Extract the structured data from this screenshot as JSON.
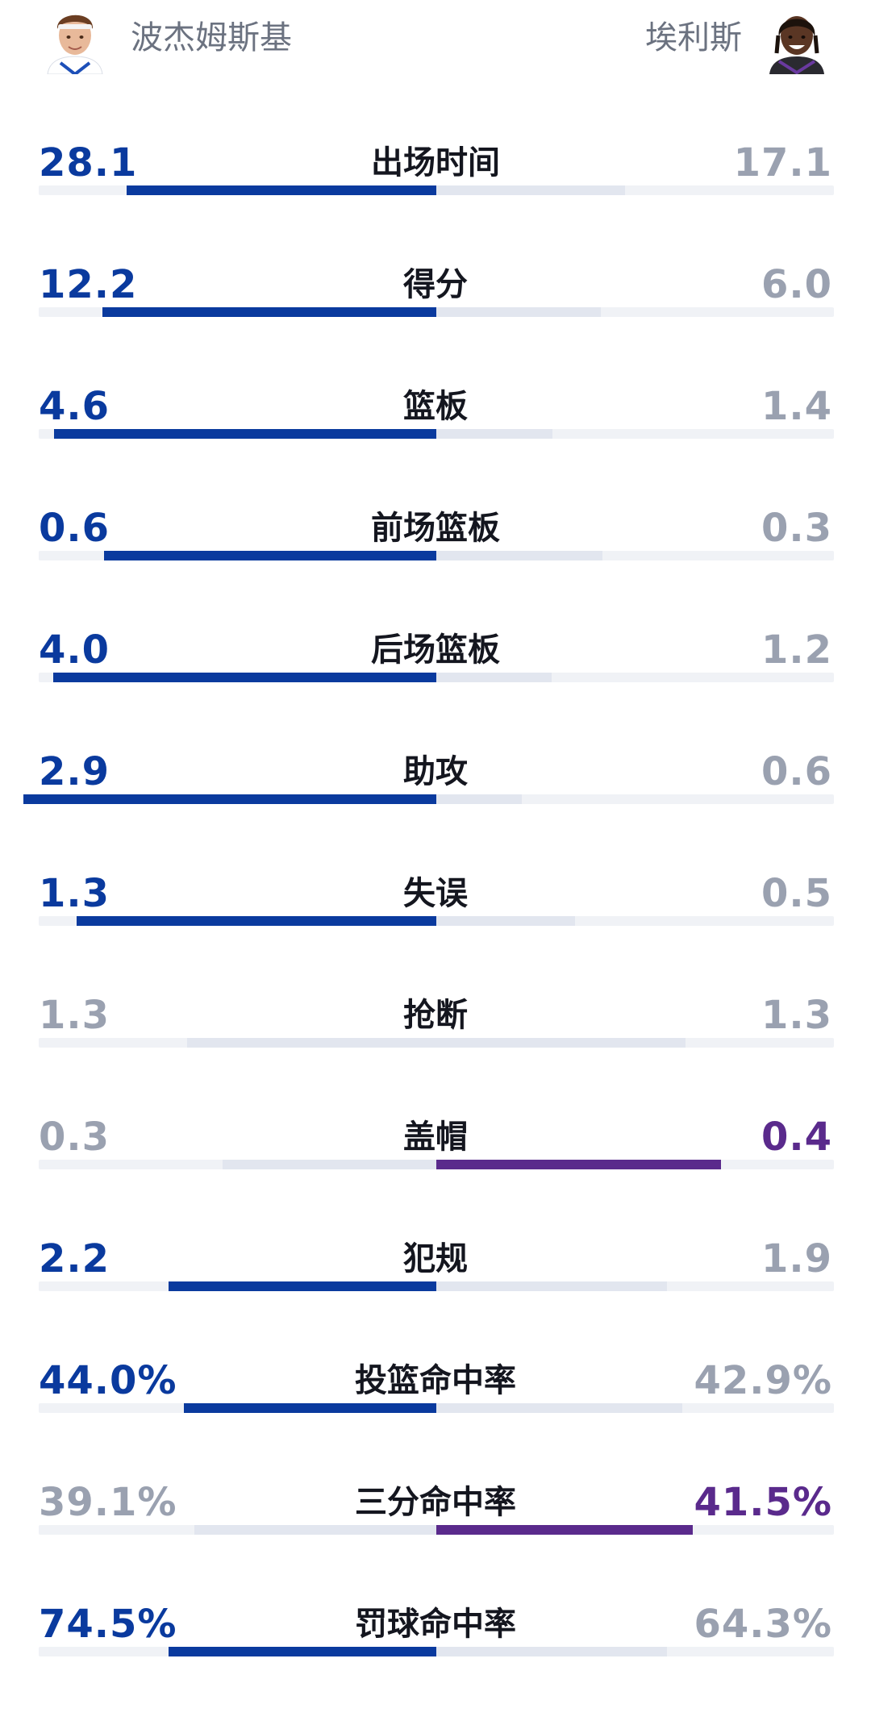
{
  "players": {
    "left": {
      "name": "波杰姆斯基",
      "avatar_icon": "player-left-avatar-icon",
      "color": "#0a3a9e"
    },
    "right": {
      "name": "埃利斯",
      "avatar_icon": "player-right-avatar-icon",
      "color": "#5a2a8c"
    }
  },
  "chart_data": {
    "type": "bar",
    "categories": [
      "出场时间",
      "得分",
      "篮板",
      "前场篮板",
      "后场篮板",
      "助攻",
      "失误",
      "抢断",
      "盖帽",
      "犯规",
      "投篮命中率",
      "三分命中率",
      "罚球命中率"
    ],
    "series": [
      {
        "name": "波杰姆斯基",
        "display": [
          "28.1",
          "12.2",
          "4.6",
          "0.6",
          "4.0",
          "2.9",
          "1.3",
          "1.3",
          "0.3",
          "2.2",
          "44.0%",
          "39.1%",
          "74.5%"
        ],
        "values": [
          28.1,
          12.2,
          4.6,
          0.6,
          4.0,
          2.9,
          1.3,
          1.3,
          0.3,
          2.2,
          44.0,
          39.1,
          74.5
        ]
      },
      {
        "name": "埃利斯",
        "display": [
          "17.1",
          "6.0",
          "1.4",
          "0.3",
          "1.2",
          "0.6",
          "0.5",
          "1.3",
          "0.4",
          "1.9",
          "42.9%",
          "41.5%",
          "64.3%"
        ],
        "values": [
          17.1,
          6.0,
          1.4,
          0.3,
          1.2,
          0.6,
          0.5,
          1.3,
          0.4,
          1.9,
          42.9,
          41.5,
          64.3
        ]
      }
    ],
    "winner": [
      "left",
      "left",
      "left",
      "left",
      "left",
      "left",
      "left",
      "tie",
      "right",
      "left",
      "left",
      "right",
      "left"
    ],
    "colors": {
      "left": "#0a3a9e",
      "right": "#5a2a8c",
      "neutral": "#9aa1b0",
      "track": "#f0f2f6",
      "ghost": "#e2e6ef"
    }
  }
}
